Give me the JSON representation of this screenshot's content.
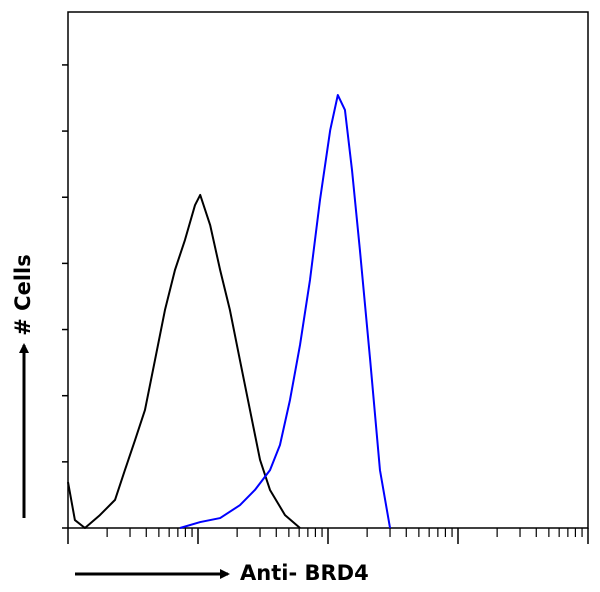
{
  "chart_data": {
    "type": "line",
    "xlabel": "Anti- BRD4",
    "ylabel": "# Cells",
    "xscale": "log",
    "xlim": [
      1,
      10000
    ],
    "ylim": [
      0,
      156
    ],
    "xticks": [
      1,
      10,
      100,
      1000,
      10000
    ],
    "xminorticks": [
      2,
      3,
      4,
      5,
      6,
      7,
      8,
      9,
      20,
      30,
      40,
      50,
      60,
      70,
      80,
      90,
      200,
      300,
      400,
      500,
      600,
      700,
      800,
      900,
      2000,
      3000,
      4000,
      5000,
      6000,
      7000,
      8000,
      9000
    ],
    "yticks": [
      0,
      20,
      40,
      60,
      80,
      100,
      120,
      140
    ],
    "series": [
      {
        "color": "#000000",
        "x": [
          1,
          1.13,
          1.35,
          1.76,
          2.3,
          2.74,
          3.28,
          3.91,
          4.67,
          5.57,
          6.65,
          7.94,
          9.48,
          10.4,
          12.4,
          14.8,
          17.6,
          21.0,
          25.1,
          30.0,
          35.8,
          46.7,
          60.9
        ],
        "values": [
          13.9,
          2.4,
          0,
          3.9,
          8.5,
          17.5,
          26.6,
          35.7,
          50.8,
          65.9,
          78.0,
          87.1,
          97.6,
          100.7,
          91.6,
          78.0,
          65.9,
          50.8,
          35.7,
          20.6,
          11.5,
          3.9,
          0
        ]
      },
      {
        "color": "#0000ff",
        "x": [
          7.27,
          10.4,
          14.8,
          21.0,
          27.4,
          35.8,
          42.7,
          51.0,
          60.9,
          72.7,
          86.8,
          104,
          119,
          135,
          153,
          176,
          211,
          251,
          300
        ],
        "values": [
          0,
          1.8,
          3.0,
          6.9,
          11.5,
          17.5,
          25.1,
          38.7,
          55.3,
          75.0,
          99.2,
          120.3,
          130.9,
          126.4,
          108.2,
          84.0,
          50.8,
          17.5,
          0
        ]
      }
    ]
  }
}
